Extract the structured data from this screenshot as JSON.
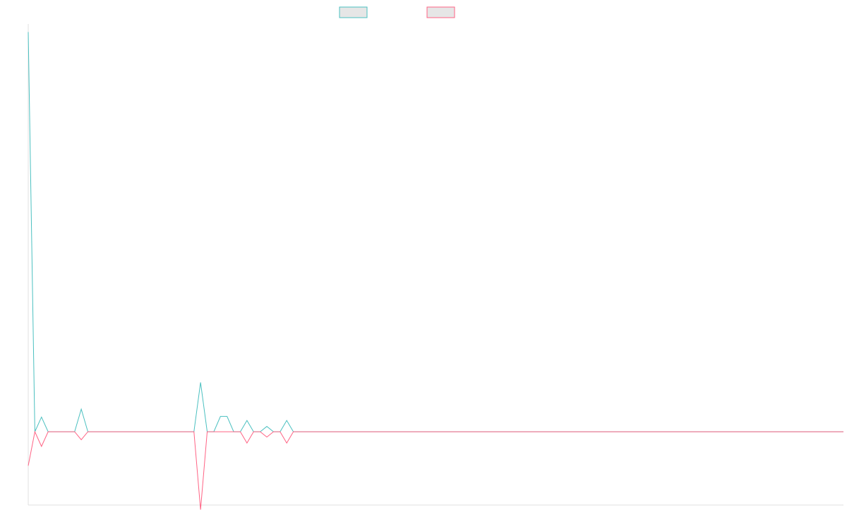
{
  "chart_data": {
    "type": "line",
    "title": "",
    "xlabel": "",
    "ylabel": "",
    "grid": false,
    "legend_position": "top-center",
    "x_count": 124,
    "ylim": [
      -110,
      610
    ],
    "series": [
      {
        "name": "",
        "color": "#4bc0c0",
        "fill": "#e6e6e6",
        "points": [
          {
            "i": 0,
            "v": 600
          },
          {
            "i": 1,
            "v": 0
          },
          {
            "i": 2,
            "v": 22
          },
          {
            "i": 3,
            "v": 0
          },
          {
            "i": 7,
            "v": 0
          },
          {
            "i": 8,
            "v": 34
          },
          {
            "i": 9,
            "v": 0
          },
          {
            "i": 25,
            "v": 0
          },
          {
            "i": 26,
            "v": 74
          },
          {
            "i": 27,
            "v": 0
          },
          {
            "i": 28,
            "v": 0
          },
          {
            "i": 29,
            "v": 23
          },
          {
            "i": 30,
            "v": 23
          },
          {
            "i": 31,
            "v": 0
          },
          {
            "i": 32,
            "v": 0
          },
          {
            "i": 33,
            "v": 17
          },
          {
            "i": 34,
            "v": 0
          },
          {
            "i": 35,
            "v": 0
          },
          {
            "i": 36,
            "v": 8
          },
          {
            "i": 37,
            "v": 0
          },
          {
            "i": 38,
            "v": 0
          },
          {
            "i": 39,
            "v": 17
          },
          {
            "i": 40,
            "v": 0
          },
          {
            "i": 123,
            "v": 0
          }
        ]
      },
      {
        "name": "",
        "color": "#ff6384",
        "fill": "#e6e6e6",
        "points": [
          {
            "i": 0,
            "v": -51
          },
          {
            "i": 1,
            "v": 0
          },
          {
            "i": 2,
            "v": -22
          },
          {
            "i": 3,
            "v": 0
          },
          {
            "i": 7,
            "v": 0
          },
          {
            "i": 8,
            "v": -12
          },
          {
            "i": 9,
            "v": 0
          },
          {
            "i": 25,
            "v": 0
          },
          {
            "i": 26,
            "v": -117
          },
          {
            "i": 27,
            "v": 0
          },
          {
            "i": 32,
            "v": 0
          },
          {
            "i": 33,
            "v": -17
          },
          {
            "i": 34,
            "v": 0
          },
          {
            "i": 35,
            "v": 0
          },
          {
            "i": 36,
            "v": -8
          },
          {
            "i": 37,
            "v": 0
          },
          {
            "i": 38,
            "v": 0
          },
          {
            "i": 39,
            "v": -17
          },
          {
            "i": 40,
            "v": 0
          },
          {
            "i": 123,
            "v": 0
          }
        ]
      }
    ]
  }
}
